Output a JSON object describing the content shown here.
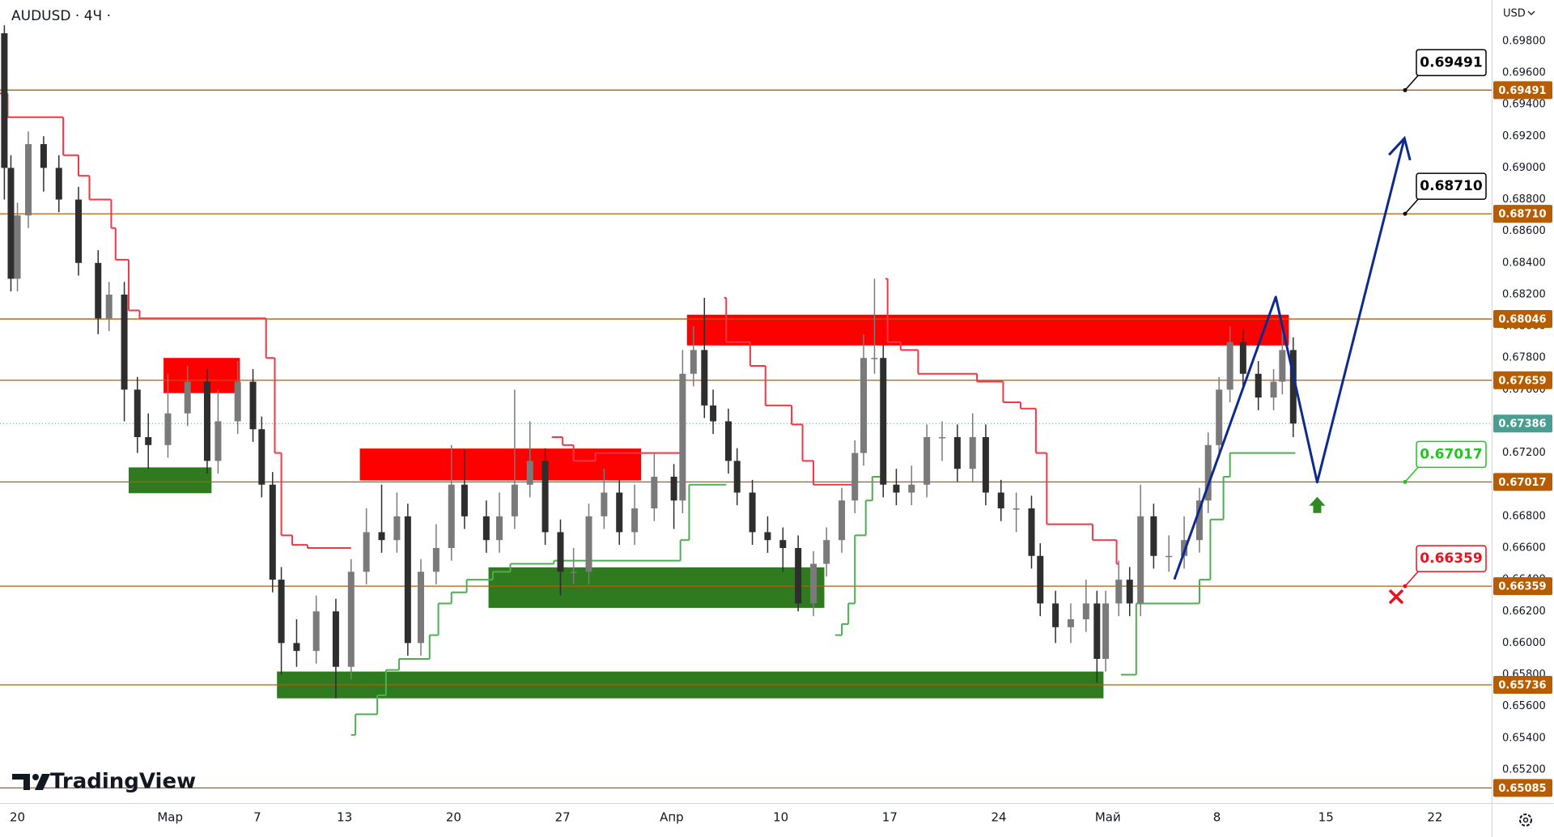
{
  "header": {
    "symbol": "AUDUSD · 4Ч ·",
    "currency": "USD"
  },
  "logo": "TradingView",
  "chart_data": {
    "type": "candlestick",
    "up_color": "#7a7a7a",
    "down_color": "#2e2e2e",
    "grid": false,
    "xlim": [
      -0.8,
      67.6
    ],
    "ylim": [
      0.6499,
      0.7006
    ],
    "xticks": [
      {
        "value": 0,
        "label": "20"
      },
      {
        "value": 7,
        "label": "Мар"
      },
      {
        "value": 11,
        "label": "7"
      },
      {
        "value": 15,
        "label": "13"
      },
      {
        "value": 20,
        "label": "20"
      },
      {
        "value": 25,
        "label": "27"
      },
      {
        "value": 30,
        "label": "Апр"
      },
      {
        "value": 35,
        "label": "10"
      },
      {
        "value": 40,
        "label": "17"
      },
      {
        "value": 45,
        "label": "24"
      },
      {
        "value": 50,
        "label": "Май"
      },
      {
        "value": 55,
        "label": "8"
      },
      {
        "value": 60,
        "label": "15"
      },
      {
        "value": 65,
        "label": "22"
      }
    ],
    "yticks": [
      {
        "value": 0.698,
        "label": "0.69800"
      },
      {
        "value": 0.696,
        "label": "0.69600"
      },
      {
        "value": 0.694,
        "label": "0.69400"
      },
      {
        "value": 0.692,
        "label": "0.69200"
      },
      {
        "value": 0.69,
        "label": "0.69000"
      },
      {
        "value": 0.688,
        "label": "0.68800"
      },
      {
        "value": 0.686,
        "label": "0.68600"
      },
      {
        "value": 0.684,
        "label": "0.68400"
      },
      {
        "value": 0.682,
        "label": "0.68200"
      },
      {
        "value": 0.68,
        "label": "0.68000"
      },
      {
        "value": 0.678,
        "label": "0.67800"
      },
      {
        "value": 0.676,
        "label": "0.67600"
      },
      {
        "value": 0.672,
        "label": "0.67200"
      },
      {
        "value": 0.668,
        "label": "0.66800"
      },
      {
        "value": 0.666,
        "label": "0.66600"
      },
      {
        "value": 0.664,
        "label": "0.66400"
      },
      {
        "value": 0.662,
        "label": "0.66200"
      },
      {
        "value": 0.66,
        "label": "0.66000"
      },
      {
        "value": 0.658,
        "label": "0.65800"
      },
      {
        "value": 0.656,
        "label": "0.65600"
      },
      {
        "value": 0.654,
        "label": "0.65400"
      },
      {
        "value": 0.652,
        "label": "0.65200"
      }
    ],
    "level_color": "#b85c00",
    "levels": [
      {
        "value": 0.69491,
        "label": "0.69491",
        "callout": "#000000"
      },
      {
        "value": 0.6871,
        "label": "0.68710",
        "callout": "#000000"
      },
      {
        "value": 0.68046,
        "label": "0.68046"
      },
      {
        "value": 0.67659,
        "label": "0.67659"
      },
      {
        "value": 0.67017,
        "label": "0.67017",
        "callout": "#22c322"
      },
      {
        "value": 0.66359,
        "label": "0.66359",
        "callout": "#e8121d"
      },
      {
        "value": 0.65736,
        "label": "0.65736"
      },
      {
        "value": 0.65085,
        "label": "0.65085"
      }
    ],
    "last_price": {
      "value": 0.67386,
      "label": "0.67386",
      "color": "#4a9d92"
    },
    "zones": [
      {
        "color": "#ff0000",
        "x": [
          6.7,
          10.2
        ],
        "y": [
          0.67578,
          0.678
        ]
      },
      {
        "color": "#2f7a1f",
        "x": [
          5.1,
          8.9
        ],
        "y": [
          0.66946,
          0.67109
        ]
      },
      {
        "color": "#ff0000",
        "x": [
          15.7,
          28.6
        ],
        "y": [
          0.67027,
          0.67228
        ]
      },
      {
        "color": "#2f7a1f",
        "x": [
          21.6,
          37.0
        ],
        "y": [
          0.66222,
          0.66478
        ]
      },
      {
        "color": "#2f7a1f",
        "x": [
          11.9,
          49.8
        ],
        "y": [
          0.65651,
          0.6582
        ]
      },
      {
        "color": "#ff0000",
        "x": [
          30.7,
          58.3
        ],
        "y": [
          0.67879,
          0.68073
        ]
      }
    ],
    "trail": [
      {
        "color": "#f23645",
        "x": [
          -0.8,
          -0.45,
          2.1,
          2.8,
          3.3,
          4.3,
          4.5,
          5.1,
          5.6,
          11.4,
          11.8,
          12.1,
          12.6,
          13.3,
          15.3,
          null,
          24.5,
          25.0,
          25.5,
          26.5,
          30.5,
          null,
          32.4,
          32.5,
          33.6,
          34.3,
          35.5,
          36.0,
          36.5,
          38.3,
          null,
          39.8,
          39.9,
          40.5,
          41.3,
          44.0,
          45.2,
          46.0,
          46.7,
          47.2,
          49.3,
          50.4,
          50.5
        ],
        "values": [
          0.6947,
          0.6932,
          0.6908,
          0.6895,
          0.688,
          0.6862,
          0.6842,
          0.681,
          0.6805,
          0.678,
          0.672,
          0.6668,
          0.6662,
          0.666,
          0.666,
          null,
          0.673,
          0.6725,
          0.6715,
          0.672,
          0.672,
          null,
          0.6818,
          0.679,
          0.6775,
          0.675,
          0.6738,
          0.6715,
          0.67,
          0.67,
          null,
          0.683,
          0.679,
          0.6785,
          0.677,
          0.6765,
          0.6752,
          0.6748,
          0.672,
          0.6675,
          0.6665,
          0.665,
          0.665
        ]
      },
      {
        "color": "#4caf50",
        "x": [
          15.3,
          15.5,
          16.5,
          16.9,
          17.5,
          18.9,
          19.3,
          19.9,
          20.6,
          21.8,
          22.6,
          24.6,
          30.4,
          30.8,
          32.5,
          null,
          37.5,
          37.8,
          38.1,
          38.4,
          38.9,
          39.2,
          39.8,
          null,
          50.6,
          51.3,
          53.9,
          54.2,
          54.7,
          55.3,
          55.6,
          58.6
        ],
        "values": [
          0.6542,
          0.6555,
          0.6567,
          0.6583,
          0.659,
          0.6605,
          0.6625,
          0.6632,
          0.664,
          0.6645,
          0.665,
          0.6652,
          0.6665,
          0.67,
          0.67,
          null,
          0.6605,
          0.6612,
          0.6625,
          0.6668,
          0.669,
          0.6705,
          0.6708,
          null,
          0.658,
          0.6625,
          0.6625,
          0.664,
          0.6678,
          0.6705,
          0.672,
          0.672
        ]
      }
    ],
    "forecast": {
      "color": "#0d2b8e",
      "x": [
        53.05,
        57.7,
        59.6,
        63.6
      ],
      "values": [
        0.66402,
        0.68185,
        0.67015,
        0.69187
      ]
    },
    "x": [
      -0.6,
      -0.3,
      0,
      0.5,
      1.2,
      1.9,
      2.8,
      3.7,
      4.2,
      4.9,
      5.5,
      6,
      6.9,
      7.8,
      8.7,
      9.2,
      10.1,
      10.8,
      11.2,
      11.7,
      12.1,
      12.8,
      13.7,
      14.6,
      15.3,
      16,
      16.7,
      17.4,
      17.9,
      18.5,
      19.2,
      19.9,
      20.5,
      21.5,
      22.1,
      22.8,
      23.5,
      24.2,
      24.9,
      25.5,
      26.2,
      26.9,
      27.6,
      28.3,
      29.2,
      30.1,
      30.5,
      31,
      31.5,
      31.9,
      32.6,
      33,
      33.7,
      34.4,
      35.1,
      35.8,
      36.5,
      37.1,
      37.8,
      38.4,
      38.8,
      39.3,
      39.7,
      40.3,
      41,
      41.7,
      42.4,
      43.1,
      43.8,
      44.4,
      45.1,
      45.8,
      46.5,
      46.9,
      47.6,
      48.3,
      49,
      49.5,
      49.9,
      50.5,
      51,
      51.5,
      52.1,
      52.8,
      53.5,
      54.2,
      54.6,
      55.1,
      55.6,
      56.2,
      56.9,
      57.6,
      58,
      58.5
    ],
    "ohlc": [
      [
        0.6985,
        0.699,
        0.688,
        0.69
      ],
      [
        0.69,
        0.6908,
        0.6822,
        0.683
      ],
      [
        0.683,
        0.6878,
        0.6822,
        0.687
      ],
      [
        0.687,
        0.6923,
        0.6862,
        0.6915
      ],
      [
        0.6915,
        0.692,
        0.6885,
        0.69
      ],
      [
        0.69,
        0.6908,
        0.6872,
        0.688
      ],
      [
        0.688,
        0.6888,
        0.6832,
        0.684
      ],
      [
        0.684,
        0.6848,
        0.6795,
        0.6805
      ],
      [
        0.6805,
        0.6828,
        0.6797,
        0.682
      ],
      [
        0.682,
        0.6828,
        0.674,
        0.676
      ],
      [
        0.676,
        0.6768,
        0.672,
        0.673
      ],
      [
        0.673,
        0.6745,
        0.671,
        0.6725
      ],
      [
        0.6725,
        0.677,
        0.6717,
        0.6745
      ],
      [
        0.6745,
        0.6775,
        0.6737,
        0.6765
      ],
      [
        0.6765,
        0.6773,
        0.6707,
        0.6715
      ],
      [
        0.6715,
        0.676,
        0.6707,
        0.674
      ],
      [
        0.674,
        0.6778,
        0.6732,
        0.6765
      ],
      [
        0.6765,
        0.6773,
        0.6727,
        0.6735
      ],
      [
        0.6735,
        0.6743,
        0.6692,
        0.67
      ],
      [
        0.67,
        0.6708,
        0.6632,
        0.664
      ],
      [
        0.664,
        0.6648,
        0.658,
        0.66
      ],
      [
        0.66,
        0.6615,
        0.6585,
        0.6595
      ],
      [
        0.6595,
        0.663,
        0.6587,
        0.662
      ],
      [
        0.662,
        0.6628,
        0.6565,
        0.6585
      ],
      [
        0.6585,
        0.6653,
        0.6577,
        0.6645
      ],
      [
        0.6645,
        0.6685,
        0.6637,
        0.667
      ],
      [
        0.667,
        0.67,
        0.6657,
        0.6665
      ],
      [
        0.6665,
        0.6695,
        0.6657,
        0.668
      ],
      [
        0.668,
        0.6688,
        0.6592,
        0.66
      ],
      [
        0.66,
        0.6653,
        0.6592,
        0.6645
      ],
      [
        0.6645,
        0.6675,
        0.6637,
        0.666
      ],
      [
        0.666,
        0.6725,
        0.6652,
        0.67
      ],
      [
        0.67,
        0.6722,
        0.6672,
        0.668
      ],
      [
        0.668,
        0.669,
        0.6657,
        0.6665
      ],
      [
        0.6665,
        0.6695,
        0.6657,
        0.668
      ],
      [
        0.668,
        0.676,
        0.6672,
        0.67
      ],
      [
        0.67,
        0.674,
        0.6692,
        0.6715
      ],
      [
        0.6715,
        0.6723,
        0.6662,
        0.667
      ],
      [
        0.667,
        0.6678,
        0.663,
        0.6645
      ],
      [
        0.6645,
        0.666,
        0.6637,
        0.6645
      ],
      [
        0.6645,
        0.6688,
        0.6637,
        0.668
      ],
      [
        0.668,
        0.671,
        0.6672,
        0.6695
      ],
      [
        0.6695,
        0.6703,
        0.6662,
        0.667
      ],
      [
        0.667,
        0.67,
        0.6662,
        0.6685
      ],
      [
        0.6685,
        0.672,
        0.6677,
        0.6705
      ],
      [
        0.6705,
        0.6713,
        0.6672,
        0.669
      ],
      [
        0.669,
        0.6785,
        0.6682,
        0.677
      ],
      [
        0.677,
        0.68,
        0.6762,
        0.6785
      ],
      [
        0.6785,
        0.6818,
        0.6742,
        0.675
      ],
      [
        0.675,
        0.676,
        0.6732,
        0.674
      ],
      [
        0.674,
        0.6748,
        0.6707,
        0.6715
      ],
      [
        0.6715,
        0.6723,
        0.6687,
        0.6695
      ],
      [
        0.6695,
        0.6703,
        0.6662,
        0.667
      ],
      [
        0.667,
        0.668,
        0.6657,
        0.6665
      ],
      [
        0.6665,
        0.6673,
        0.6645,
        0.666
      ],
      [
        0.666,
        0.6668,
        0.662,
        0.6625
      ],
      [
        0.6625,
        0.6658,
        0.6617,
        0.665
      ],
      [
        0.665,
        0.6673,
        0.6642,
        0.6665
      ],
      [
        0.6665,
        0.6698,
        0.6657,
        0.669
      ],
      [
        0.669,
        0.6728,
        0.6682,
        0.672
      ],
      [
        0.672,
        0.6795,
        0.6712,
        0.678
      ],
      [
        0.678,
        0.683,
        0.677,
        0.678
      ],
      [
        0.678,
        0.6788,
        0.6692,
        0.67
      ],
      [
        0.67,
        0.671,
        0.6687,
        0.6695
      ],
      [
        0.6695,
        0.6712,
        0.6687,
        0.67
      ],
      [
        0.67,
        0.6738,
        0.6692,
        0.673
      ],
      [
        0.673,
        0.674,
        0.6715,
        0.673
      ],
      [
        0.673,
        0.6738,
        0.6702,
        0.671
      ],
      [
        0.671,
        0.6745,
        0.6702,
        0.673
      ],
      [
        0.673,
        0.6738,
        0.6687,
        0.6695
      ],
      [
        0.6695,
        0.6703,
        0.6677,
        0.6685
      ],
      [
        0.6685,
        0.6695,
        0.667,
        0.6685
      ],
      [
        0.6685,
        0.6693,
        0.6647,
        0.6655
      ],
      [
        0.6655,
        0.6663,
        0.6617,
        0.6625
      ],
      [
        0.6625,
        0.6633,
        0.66,
        0.661
      ],
      [
        0.661,
        0.6625,
        0.66,
        0.6615
      ],
      [
        0.6615,
        0.664,
        0.6607,
        0.6625
      ],
      [
        0.6625,
        0.6633,
        0.6575,
        0.659
      ],
      [
        0.659,
        0.6633,
        0.6582,
        0.6625
      ],
      [
        0.6625,
        0.6652,
        0.6617,
        0.664
      ],
      [
        0.664,
        0.6648,
        0.6617,
        0.6625
      ],
      [
        0.6625,
        0.67,
        0.6617,
        0.668
      ],
      [
        0.668,
        0.6688,
        0.6647,
        0.6655
      ],
      [
        0.6655,
        0.6668,
        0.6645,
        0.6655
      ],
      [
        0.6655,
        0.668,
        0.6647,
        0.6665
      ],
      [
        0.6665,
        0.6698,
        0.6657,
        0.669
      ],
      [
        0.669,
        0.6733,
        0.6682,
        0.6725
      ],
      [
        0.6725,
        0.6768,
        0.6717,
        0.676
      ],
      [
        0.676,
        0.68,
        0.6752,
        0.679
      ],
      [
        0.679,
        0.6798,
        0.6762,
        0.677
      ],
      [
        0.677,
        0.6778,
        0.6747,
        0.6755
      ],
      [
        0.6755,
        0.6773,
        0.6747,
        0.6765
      ],
      [
        0.6765,
        0.68,
        0.6757,
        0.6785
      ],
      [
        0.6785,
        0.6793,
        0.673,
        0.67386
      ]
    ]
  }
}
